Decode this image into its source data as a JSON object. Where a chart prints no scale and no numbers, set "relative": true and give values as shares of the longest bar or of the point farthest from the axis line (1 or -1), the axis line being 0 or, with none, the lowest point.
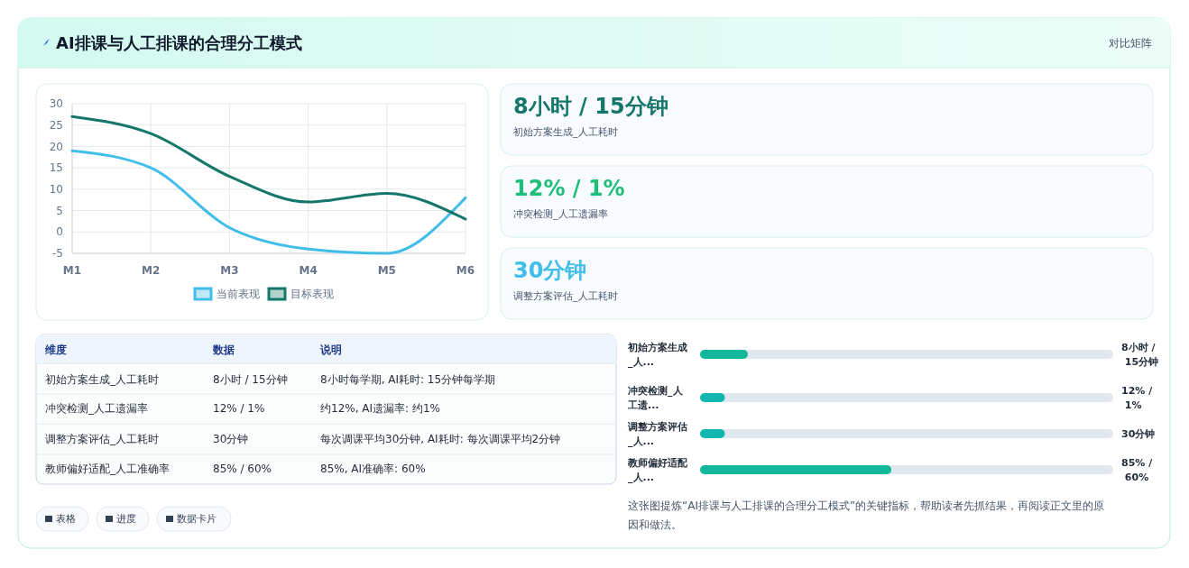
{
  "chart_data": [
    {
      "type": "other",
      "title": "AI排课与人工排课的合理分工模式",
      "subtitle": "对比矩阵"
    },
    {
      "type": "line",
      "categories": [
        "M1",
        "M2",
        "M3",
        "M4",
        "M5",
        "M6"
      ],
      "series": [
        {
          "name": "当前表现",
          "color": "#41bde9",
          "values": [
            19,
            15,
            1,
            -4,
            -5,
            8
          ]
        },
        {
          "name": "目标表现",
          "color": "#14776a",
          "values": [
            27,
            23,
            13,
            7,
            9,
            3
          ]
        }
      ],
      "ylim": [
        -5,
        30
      ],
      "yticks": [
        -5,
        0,
        5,
        10,
        15,
        20,
        25,
        30
      ],
      "grid": true,
      "legend": "bottom",
      "marker": "none",
      "line_style": "solid"
    },
    {
      "type": "other",
      "annotations": [
        "8小时 / 15分钟",
        "初始方案生成_人工耗时",
        "12% / 1%",
        "冲突检测_人工遗漏率",
        "30分钟",
        "调整方案评估_人工耗时"
      ]
    },
    {
      "type": "other",
      "annotations": [
        "维度",
        "数据",
        "说明",
        "初始方案生成_人工耗时",
        "8小时 / 15分钟",
        "8小时每学期, AI耗时: 15分钟每学期",
        "冲突检测_人工遗漏率",
        "12% / 1%",
        "约12%, AI遗漏率: 约1%",
        "调整方案评估_人工耗时",
        "30分钟",
        "每次调课平均30分钟, AI耗时: 每次调课平均2分钟",
        "教师偏好适配_人工准确率",
        "85% / 60%",
        "85%, AI准确率: 60%",
        "表格",
        "进度",
        "数据卡片"
      ]
    },
    {
      "type": "bar",
      "orientation": "horizontal",
      "relative": true,
      "categories": [
        "初始方案生成_人...",
        "冲突检测_人工遗...",
        "调整方案评估_人...",
        "教师偏好适配_人..."
      ],
      "values": [
        0.25,
        0.13,
        0.13,
        1
      ],
      "colors": [
        "#12b89a",
        "#12b8b0",
        "#12b8b0",
        "#12b89a"
      ],
      "annotations": [
        "8小时 / 15分钟",
        "12% / 1%",
        "30分钟",
        "85% / 60%",
        "这张图提炼“AI排课与人工排课的合理分工模式”的关键指标，帮助读者先抓结果，再阅读正文里的原因和做法。"
      ]
    }
  ]
}
